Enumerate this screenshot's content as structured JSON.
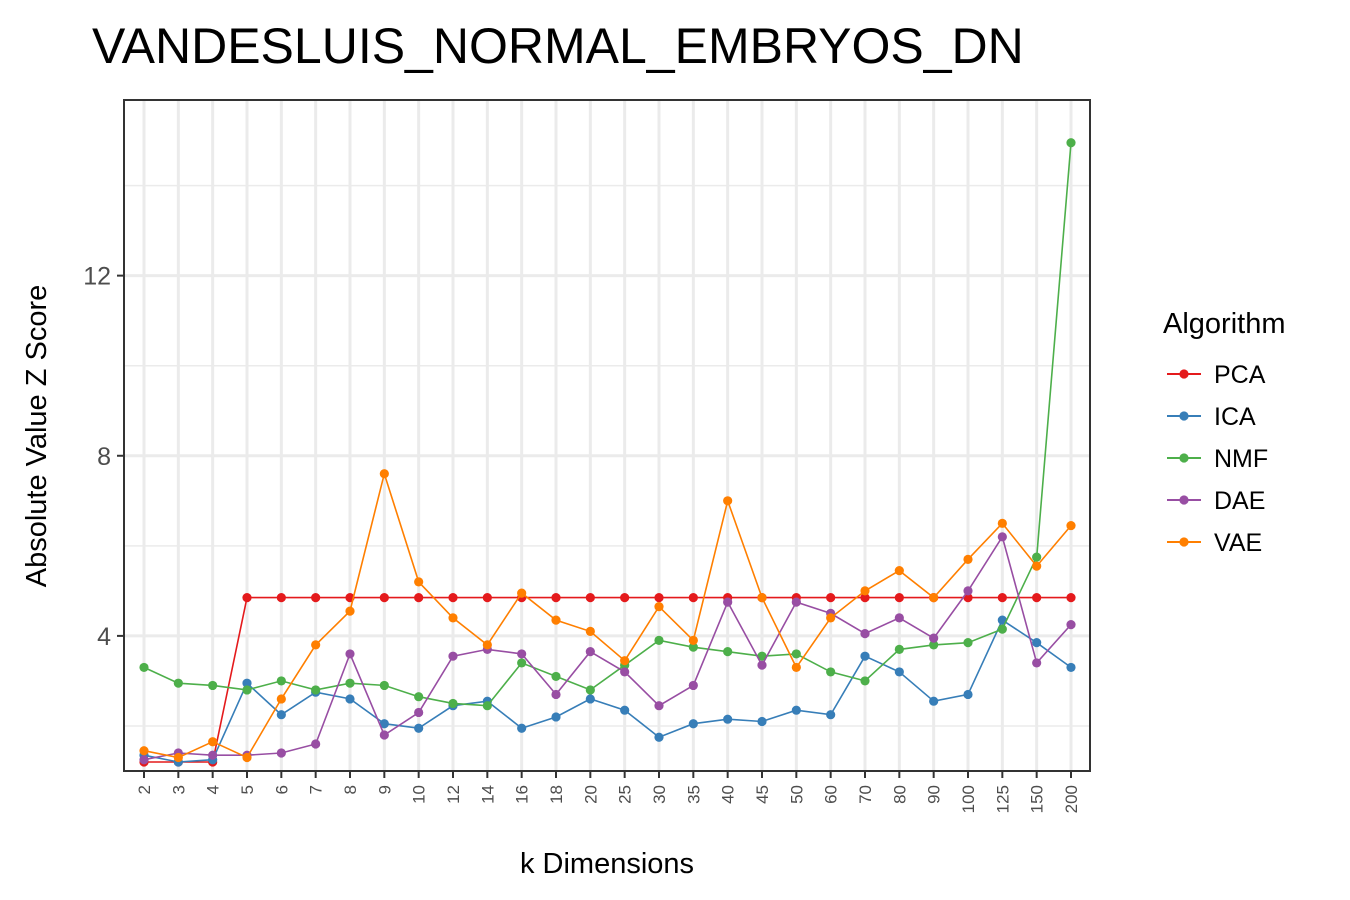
{
  "chart_data": {
    "type": "line",
    "title": "VANDESLUIS_NORMAL_EMBRYOS_DN",
    "xlabel": "k Dimensions",
    "ylabel": "Absolute Value Z Score",
    "categories": [
      "2",
      "3",
      "4",
      "5",
      "6",
      "7",
      "8",
      "9",
      "10",
      "12",
      "14",
      "16",
      "18",
      "20",
      "25",
      "30",
      "35",
      "40",
      "45",
      "50",
      "60",
      "70",
      "80",
      "90",
      "100",
      "125",
      "150",
      "200"
    ],
    "ylim": [
      1.0,
      15.9
    ],
    "yticks": [
      4,
      8,
      12
    ],
    "grid": true,
    "legend": {
      "title": "Algorithm",
      "position": "right"
    },
    "series": [
      {
        "name": "PCA",
        "color": "#e41a1c",
        "values": [
          1.2,
          1.2,
          1.2,
          4.85,
          4.85,
          4.85,
          4.85,
          4.85,
          4.85,
          4.85,
          4.85,
          4.85,
          4.85,
          4.85,
          4.85,
          4.85,
          4.85,
          4.85,
          4.85,
          4.85,
          4.85,
          4.85,
          4.85,
          4.85,
          4.85,
          4.85,
          4.85,
          4.85
        ]
      },
      {
        "name": "ICA",
        "color": "#377eb8",
        "values": [
          1.35,
          1.2,
          1.25,
          2.95,
          2.25,
          2.75,
          2.6,
          2.05,
          1.95,
          2.45,
          2.55,
          1.95,
          2.2,
          2.6,
          2.35,
          1.75,
          2.05,
          2.15,
          2.1,
          2.35,
          2.25,
          3.55,
          3.2,
          2.55,
          2.7,
          4.35,
          3.85,
          3.3
        ]
      },
      {
        "name": "NMF",
        "color": "#4daf4a",
        "values": [
          3.3,
          2.95,
          2.9,
          2.8,
          3.0,
          2.8,
          2.95,
          2.9,
          2.65,
          2.5,
          2.45,
          3.4,
          3.1,
          2.8,
          3.35,
          3.9,
          3.75,
          3.65,
          3.55,
          3.6,
          3.2,
          3.0,
          3.7,
          3.8,
          3.85,
          4.15,
          5.75,
          14.95
        ]
      },
      {
        "name": "DAE",
        "color": "#984ea3",
        "values": [
          1.25,
          1.4,
          1.35,
          1.35,
          1.4,
          1.6,
          3.6,
          1.8,
          2.3,
          3.55,
          3.7,
          3.6,
          2.7,
          3.65,
          3.2,
          2.45,
          2.9,
          4.75,
          3.35,
          4.75,
          4.5,
          4.05,
          4.4,
          3.95,
          5.0,
          6.2,
          3.4,
          4.25
        ]
      },
      {
        "name": "VAE",
        "color": "#ff7f00",
        "values": [
          1.45,
          1.3,
          1.65,
          1.3,
          2.6,
          3.8,
          4.55,
          7.6,
          5.2,
          4.4,
          3.8,
          4.95,
          4.35,
          4.1,
          3.45,
          4.65,
          3.9,
          7.0,
          4.85,
          3.3,
          4.4,
          5.0,
          5.45,
          4.85,
          5.7,
          6.5,
          5.55,
          6.45
        ]
      }
    ]
  }
}
